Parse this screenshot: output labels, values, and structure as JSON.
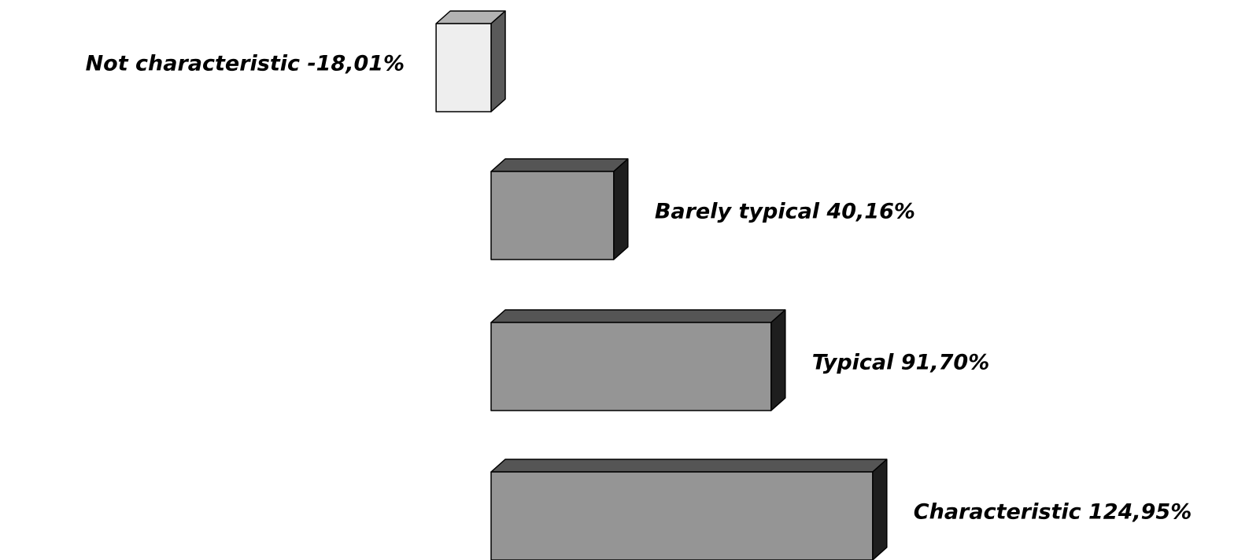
{
  "chart_data": {
    "type": "bar",
    "orientation": "horizontal",
    "style": "3d",
    "categories": [
      "Not characteristic",
      "Barely typical",
      "Typical",
      "Characteristic"
    ],
    "values": [
      -18.01,
      40.16,
      91.7,
      124.95
    ],
    "value_labels": [
      "-18,01%",
      "40,16%",
      "91,70%",
      "124,95%"
    ],
    "unit": "%",
    "title": "",
    "xlabel": "",
    "ylabel": "",
    "grid": false,
    "legend": "none",
    "colors": {
      "negative_front": "#eeeeee",
      "negative_top": "#b3b3b3",
      "negative_side": "#5a5a5a",
      "positive_front": "#959595",
      "positive_top": "#555555",
      "positive_side": "#1e1e1e",
      "outline": "#000000"
    }
  }
}
